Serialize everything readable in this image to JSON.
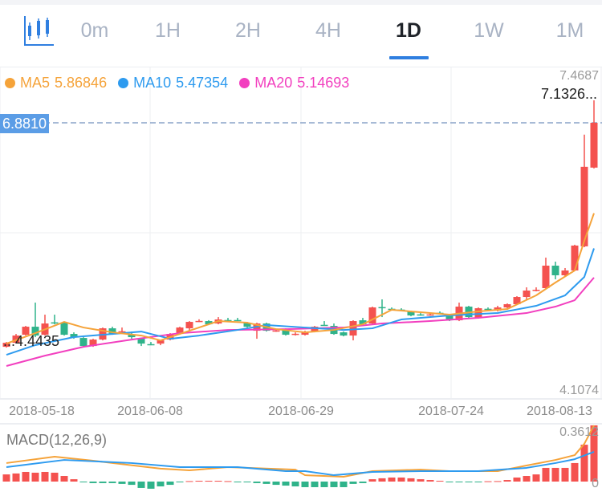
{
  "tabs": {
    "icon": "candlestick-chart-icon",
    "items": [
      {
        "label": "0m",
        "active": false
      },
      {
        "label": "1H",
        "active": false
      },
      {
        "label": "2H",
        "active": false
      },
      {
        "label": "4H",
        "active": false
      },
      {
        "label": "1D",
        "active": true
      },
      {
        "label": "1W",
        "active": false
      },
      {
        "label": "1M",
        "active": false
      }
    ]
  },
  "legend": {
    "ma5": {
      "label": "MA5",
      "value": "5.86846",
      "color": "#f5a33a"
    },
    "ma10": {
      "label": "MA10",
      "value": "5.47354",
      "color": "#2e9bef"
    },
    "ma20": {
      "label": "MA20",
      "value": "5.14693",
      "color": "#f23fbf"
    }
  },
  "colors": {
    "up": "#f4524f",
    "down": "#2fb38a",
    "current_line": "#8aa4c8",
    "current_bg": "#5b9de6"
  },
  "chart_data": [
    {
      "type": "candlestick",
      "y_axis_labels": {
        "max": "7.4687",
        "min": "4.1074"
      },
      "highest_marker": "7.1326...",
      "lowest_marker": "...4.4435",
      "current_price": "6.8810",
      "x_tick_labels": [
        "2018-05-18",
        "2018-06-08",
        "2018-06-29",
        "2018-07-24",
        "2018-08-13"
      ],
      "grid": true,
      "candles": [
        [
          4.372,
          4.417,
          4.426,
          4.363
        ],
        [
          4.417,
          4.498,
          4.516,
          4.408
        ],
        [
          4.507,
          4.597,
          4.606,
          4.498
        ],
        [
          4.597,
          4.498,
          4.867,
          4.48
        ],
        [
          4.507,
          4.633,
          4.732,
          4.498
        ],
        [
          4.646,
          4.64,
          4.732,
          4.624
        ],
        [
          4.642,
          4.507,
          4.651,
          4.498
        ],
        [
          4.516,
          4.48,
          4.534,
          4.462
        ],
        [
          4.471,
          4.381,
          4.48,
          4.372
        ],
        [
          4.381,
          4.453,
          4.462,
          4.372
        ],
        [
          4.453,
          4.579,
          4.588,
          4.444
        ],
        [
          4.579,
          4.516,
          4.597,
          4.507
        ],
        [
          4.54,
          4.546,
          4.588,
          4.535
        ],
        [
          4.507,
          4.48,
          4.543,
          4.462
        ],
        [
          4.462,
          4.408,
          4.471,
          4.381
        ],
        [
          4.402,
          4.396,
          4.426,
          4.39
        ],
        [
          4.408,
          4.444,
          4.453,
          4.39
        ],
        [
          4.453,
          4.516,
          4.525,
          4.444
        ],
        [
          4.516,
          4.588,
          4.597,
          4.507
        ],
        [
          4.579,
          4.651,
          4.66,
          4.543
        ],
        [
          4.656,
          4.662,
          4.68,
          4.65
        ],
        [
          4.66,
          4.624,
          4.67,
          4.615
        ],
        [
          4.633,
          4.678,
          4.705,
          4.624
        ],
        [
          4.672,
          4.667,
          4.696,
          4.664
        ],
        [
          4.672,
          4.667,
          4.696,
          4.664
        ],
        [
          4.642,
          4.597,
          4.651,
          4.588
        ],
        [
          4.552,
          4.633,
          4.642,
          4.462
        ],
        [
          4.633,
          4.552,
          4.642,
          4.543
        ],
        [
          4.55,
          4.555,
          4.57,
          4.54
        ],
        [
          4.57,
          4.507,
          4.579,
          4.498
        ],
        [
          4.514,
          4.518,
          4.534,
          4.498
        ],
        [
          4.507,
          4.543,
          4.552,
          4.498
        ],
        [
          4.543,
          4.597,
          4.606,
          4.534
        ],
        [
          4.618,
          4.613,
          4.66,
          4.606
        ],
        [
          4.606,
          4.516,
          4.633,
          4.507
        ],
        [
          4.534,
          4.498,
          4.543,
          4.489
        ],
        [
          4.498,
          4.66,
          4.669,
          4.444
        ],
        [
          4.669,
          4.624,
          4.696,
          4.615
        ],
        [
          4.633,
          4.813,
          4.822,
          4.624
        ],
        [
          4.817,
          4.811,
          4.903,
          4.705
        ],
        [
          4.798,
          4.792,
          4.813,
          4.78
        ],
        [
          4.789,
          4.783,
          4.804,
          4.77
        ],
        [
          4.768,
          4.723,
          4.777,
          4.714
        ],
        [
          4.735,
          4.73,
          4.75,
          4.72
        ],
        [
          4.73,
          4.735,
          4.75,
          4.72
        ],
        [
          4.753,
          4.748,
          4.768,
          4.735
        ],
        [
          4.723,
          4.669,
          4.732,
          4.66
        ],
        [
          4.669,
          4.822,
          4.867,
          4.66
        ],
        [
          4.822,
          4.705,
          4.831,
          4.696
        ],
        [
          4.696,
          4.804,
          4.813,
          4.687
        ],
        [
          4.798,
          4.793,
          4.813,
          4.78
        ],
        [
          4.777,
          4.813,
          4.831,
          4.768
        ],
        [
          4.813,
          4.849,
          4.858,
          4.804
        ],
        [
          4.849,
          4.93,
          4.939,
          4.84
        ],
        [
          4.93,
          5.002,
          5.038,
          4.903
        ],
        [
          4.998,
          5.011,
          5.038,
          4.993
        ],
        [
          5.029,
          5.281,
          5.371,
          5.02
        ],
        [
          5.281,
          5.173,
          5.326,
          5.128
        ],
        [
          5.173,
          5.227,
          5.254,
          5.164
        ],
        [
          5.227,
          5.506,
          5.515,
          5.218
        ],
        [
          5.497,
          6.388,
          6.748,
          5.488
        ],
        [
          6.379,
          6.881,
          7.1326,
          6.37
        ]
      ],
      "candle_format": [
        "open",
        "close",
        "high",
        "low"
      ],
      "ma": {
        "ma5": [
          [
            0,
            4.408
          ],
          [
            3,
            4.525
          ],
          [
            6,
            4.651
          ],
          [
            8,
            4.588
          ],
          [
            11,
            4.534
          ],
          [
            14,
            4.498
          ],
          [
            16,
            4.444
          ],
          [
            19,
            4.552
          ],
          [
            22,
            4.66
          ],
          [
            25,
            4.642
          ],
          [
            28,
            4.57
          ],
          [
            31,
            4.534
          ],
          [
            34,
            4.561
          ],
          [
            37,
            4.624
          ],
          [
            40,
            4.786
          ],
          [
            43,
            4.759
          ],
          [
            46,
            4.732
          ],
          [
            49,
            4.768
          ],
          [
            52,
            4.795
          ],
          [
            55,
            4.948
          ],
          [
            57,
            5.092
          ],
          [
            59,
            5.227
          ],
          [
            60,
            5.56
          ],
          [
            61,
            5.868
          ]
        ],
        "ma10": [
          [
            0,
            4.282
          ],
          [
            3,
            4.391
          ],
          [
            7,
            4.481
          ],
          [
            11,
            4.516
          ],
          [
            14,
            4.543
          ],
          [
            17,
            4.462
          ],
          [
            20,
            4.498
          ],
          [
            24,
            4.561
          ],
          [
            27,
            4.615
          ],
          [
            31,
            4.588
          ],
          [
            35,
            4.561
          ],
          [
            38,
            4.579
          ],
          [
            41,
            4.678
          ],
          [
            46,
            4.723
          ],
          [
            51,
            4.75
          ],
          [
            55,
            4.831
          ],
          [
            58,
            4.948
          ],
          [
            60,
            5.155
          ],
          [
            61,
            5.474
          ]
        ],
        "ma20": [
          [
            0,
            4.157
          ],
          [
            4,
            4.273
          ],
          [
            8,
            4.372
          ],
          [
            13,
            4.453
          ],
          [
            18,
            4.525
          ],
          [
            23,
            4.561
          ],
          [
            29,
            4.57
          ],
          [
            35,
            4.588
          ],
          [
            39,
            4.633
          ],
          [
            44,
            4.66
          ],
          [
            49,
            4.696
          ],
          [
            54,
            4.75
          ],
          [
            57,
            4.822
          ],
          [
            59,
            4.894
          ],
          [
            61,
            5.147
          ]
        ]
      }
    },
    {
      "type": "bar",
      "title": "MACD(12,26,9)",
      "y_axis_labels": {
        "max": "0.3612",
        "min": "0"
      },
      "histogram": [
        0.046,
        0.052,
        0.062,
        0.057,
        0.062,
        0.057,
        0.036,
        0.015,
        -0.005,
        -0.01,
        -0.01,
        -0.01,
        -0.015,
        -0.021,
        -0.041,
        -0.046,
        -0.031,
        -0.021,
        -0.005,
        0.003,
        0.005,
        0.005,
        0.005,
        0.003,
        -0.003,
        -0.005,
        -0.01,
        -0.015,
        -0.021,
        -0.026,
        -0.031,
        -0.036,
        -0.036,
        -0.036,
        -0.036,
        -0.036,
        -0.015,
        -0.01,
        0.015,
        0.021,
        0.026,
        0.026,
        0.021,
        0.015,
        0.01,
        0.005,
        -0.003,
        -0.003,
        -0.003,
        -0.002,
        0.002,
        0.003,
        0.01,
        0.026,
        0.036,
        0.046,
        0.088,
        0.088,
        0.088,
        0.119,
        0.237,
        0.3612
      ],
      "dif": [
        [
          0,
          0.119
        ],
        [
          5,
          0.16
        ],
        [
          9,
          0.134
        ],
        [
          16,
          0.083
        ],
        [
          19,
          0.072
        ],
        [
          23,
          0.093
        ],
        [
          30,
          0.077
        ],
        [
          31,
          0.041
        ],
        [
          35,
          0.031
        ],
        [
          38,
          0.067
        ],
        [
          43,
          0.077
        ],
        [
          46,
          0.067
        ],
        [
          51,
          0.067
        ],
        [
          54,
          0.103
        ],
        [
          57,
          0.139
        ],
        [
          59,
          0.17
        ],
        [
          60,
          0.243
        ],
        [
          61,
          0.361
        ]
      ],
      "dea": [
        [
          0,
          0.093
        ],
        [
          6,
          0.139
        ],
        [
          13,
          0.119
        ],
        [
          18,
          0.093
        ],
        [
          24,
          0.093
        ],
        [
          29,
          0.067
        ],
        [
          31,
          0.067
        ],
        [
          34,
          0.041
        ],
        [
          38,
          0.062
        ],
        [
          43,
          0.067
        ],
        [
          49,
          0.067
        ],
        [
          54,
          0.088
        ],
        [
          57,
          0.119
        ],
        [
          59,
          0.144
        ],
        [
          61,
          0.191
        ]
      ]
    }
  ]
}
